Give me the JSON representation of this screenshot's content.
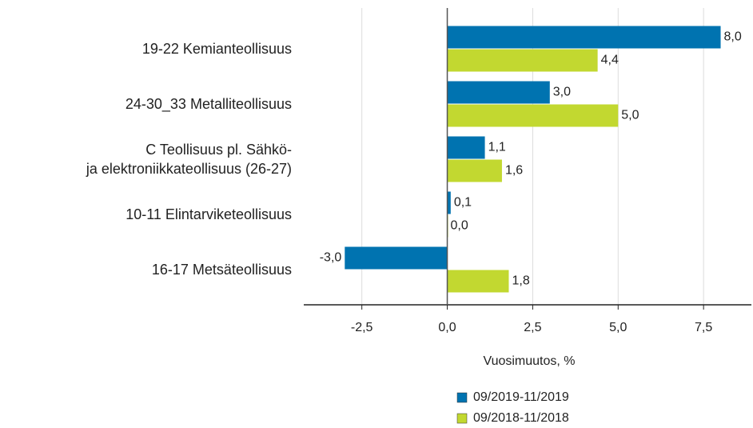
{
  "chart_data": {
    "type": "barh",
    "categories": [
      "19-22 Kemianteollisuus",
      "24-30_33 Metalliteollisuus",
      "C Teollisuus pl. Sähkö-\nja elektroniikkateollisuus (26-27)",
      "10-11 Elintarviketeollisuus",
      "16-17 Metsäteollisuus"
    ],
    "series": [
      {
        "name": "09/2019-11/2019",
        "color": "#0073b0",
        "values": [
          8.0,
          3.0,
          1.1,
          0.1,
          -3.0
        ],
        "value_labels": [
          "8,0",
          "3,0",
          "1,1",
          "0,1",
          "-3,0"
        ]
      },
      {
        "name": "09/2018-11/2018",
        "color": "#c2d830",
        "values": [
          4.4,
          5.0,
          1.6,
          0.0,
          1.8
        ],
        "value_labels": [
          "4,4",
          "5,0",
          "1,6",
          "0,0",
          "1,8"
        ]
      }
    ],
    "xlabel": "Vuosimuutos, %",
    "xlim": [
      -4.2,
      8.9
    ],
    "xticks": [
      {
        "value": -2.5,
        "label": "-2,5"
      },
      {
        "value": 0,
        "label": "0,0"
      },
      {
        "value": 2.5,
        "label": "2,5"
      },
      {
        "value": 5,
        "label": "5,0"
      },
      {
        "value": 7.5,
        "label": "7,5"
      }
    ],
    "grid": true,
    "legend": "bottom"
  }
}
